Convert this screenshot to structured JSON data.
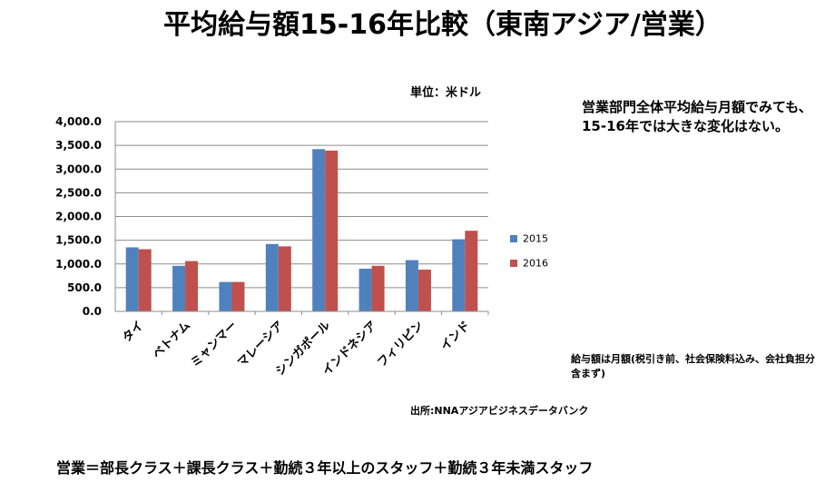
{
  "title": "平均給与額15-16年比較（東南アジア/営業）",
  "unit_label": "単位：米ドル",
  "comment": "営業部門全体平均給与月額でみても、15-16年では大きな変化はない。",
  "note": "給与額は月額(税引き前、社会保険料込み、会社負担分含まず)",
  "source": "出所:NNAアジアビジネスデータバンク",
  "footer": "営業＝部長クラス＋課長クラス＋勤続３年以上のスタッフ＋勤続３年未満スタッフ",
  "colors": {
    "series_2015": "#4F81BD",
    "series_2016": "#C0504D",
    "grid": "#8C8C8C"
  },
  "chart_data": {
    "type": "bar",
    "categories": [
      "タイ",
      "ベトナム",
      "ミャンマー",
      "マレーシア",
      "シンガポール",
      "インドネシア",
      "フィリピン",
      "インド"
    ],
    "series": [
      {
        "name": "2015",
        "values": [
          1350,
          960,
          620,
          1420,
          3420,
          900,
          1080,
          1520
        ]
      },
      {
        "name": "2016",
        "values": [
          1310,
          1060,
          620,
          1370,
          3390,
          960,
          880,
          1700
        ]
      }
    ],
    "ylim": [
      0,
      4000
    ],
    "yticks": [
      "0.0",
      "500.0",
      "1,000.0",
      "1,500.0",
      "2,000.0",
      "2,500.0",
      "3,000.0",
      "3,500.0",
      "4,000.0"
    ],
    "grid": true,
    "legend": "right"
  }
}
